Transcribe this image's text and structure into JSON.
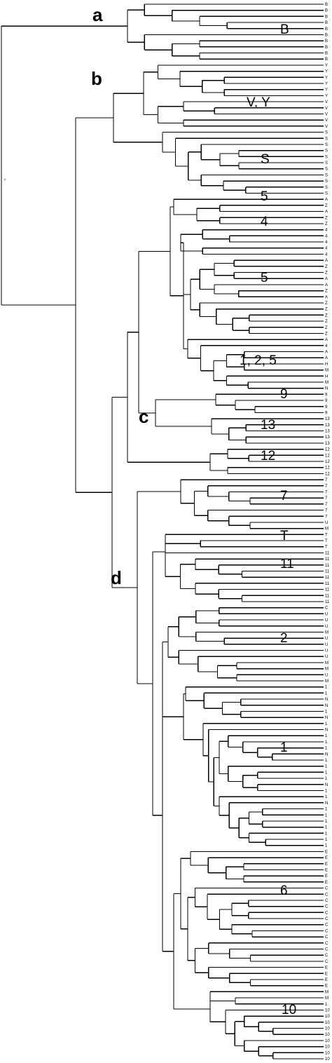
{
  "figure": {
    "clade_labels": [
      "a",
      "b",
      "c",
      "d"
    ],
    "group_labels": [
      "B",
      "V, Y",
      "S",
      "5",
      "4",
      "5",
      "1, 2, 5",
      "9",
      "13",
      "12",
      "7",
      "T",
      "11",
      "2",
      "1",
      "6",
      "10"
    ],
    "scale_mark": "'",
    "leaf_labels": [
      "B",
      "B",
      "B",
      "B",
      "B",
      "B",
      "B",
      "B",
      "B",
      "B",
      "Y",
      "Y",
      "Y",
      "Y",
      "Y",
      "Y",
      "V",
      "V",
      "V",
      "V",
      "V",
      "S",
      "S",
      "S",
      "S",
      "S",
      "S",
      "S",
      "S",
      "S",
      "S",
      "S",
      "A",
      "Z",
      "A",
      "Z",
      "Z",
      "4",
      "4",
      "4",
      "4",
      "4",
      "A",
      "Z",
      "Z",
      "A",
      "A",
      "Z",
      "A",
      "Z",
      "Z",
      "Z",
      "Z",
      "Z",
      "Z",
      "A",
      "4",
      "A",
      "A",
      "H",
      "M",
      "H",
      "M",
      "N",
      "9",
      "9",
      "9",
      "9",
      "13",
      "13",
      "13",
      "13",
      "13",
      "12",
      "12",
      "12",
      "12",
      "12",
      "7",
      "7",
      "7",
      "7",
      "7",
      "7",
      "7",
      "U",
      "M",
      "T",
      "T",
      "T",
      "11",
      "11",
      "11",
      "11",
      "11",
      "11",
      "11",
      "11",
      "11",
      "C",
      "U",
      "U",
      "U",
      "M",
      "U",
      "U",
      "U",
      "U",
      "M",
      "M",
      "U",
      "M",
      "1",
      "1",
      "N",
      "N",
      "1",
      "N",
      "1",
      "N",
      "1",
      "1",
      "1",
      "N",
      "1",
      "1",
      "1",
      "1",
      "N",
      "1",
      "1",
      "N",
      "1",
      "1",
      "1",
      "1",
      "1",
      "1",
      "1",
      "E",
      "E",
      "E",
      "E",
      "E",
      "E",
      "C",
      "C",
      "C",
      "C",
      "C",
      "C",
      "C",
      "C",
      "C",
      "C",
      "C",
      "C",
      "C",
      "E",
      "E",
      "E",
      "E",
      "M",
      "M",
      "1",
      "10",
      "10",
      "10",
      "10",
      "10",
      "10",
      "10",
      "10",
      "10"
    ]
  }
}
